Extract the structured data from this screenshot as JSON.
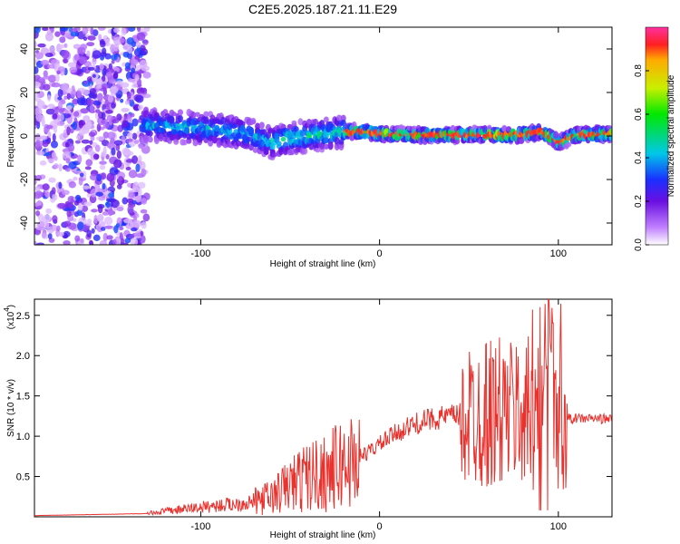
{
  "title": "C2E5.2025.187.21.11.E29",
  "chart_data": [
    {
      "type": "heatmap",
      "xlabel": "Height of straight line (km)",
      "ylabel": "Frequency (Hz)",
      "xlim": [
        -193,
        130
      ],
      "ylim": [
        -50,
        50
      ],
      "xticks": [
        -100,
        0,
        100
      ],
      "yticks": [
        40,
        20,
        0,
        -20,
        -40
      ],
      "colorbar": {
        "label": "Normalized spectral amplitude",
        "range": [
          0,
          1
        ],
        "ticks": [
          "0.0",
          "0.2",
          "0.4",
          "0.6",
          "0.8"
        ]
      },
      "ridge_trace": {
        "x": [
          -130,
          -110,
          -90,
          -70,
          -60,
          -50,
          -40,
          -30,
          -20,
          -10,
          0,
          20,
          40,
          60,
          80,
          90,
          95,
          100,
          110,
          130
        ],
        "frequency": [
          5,
          4,
          3,
          0,
          -3,
          -1,
          0,
          1,
          2,
          2,
          1,
          0.5,
          0.5,
          0.5,
          0.5,
          2,
          0,
          -3,
          0.5,
          1
        ]
      }
    },
    {
      "type": "line",
      "xlabel": "Height of straight line (km)",
      "ylabel": "SNR (10 * v/v)",
      "y_multiplier_label": "(x10",
      "y_multiplier_exp": "4",
      "y_multiplier_close": ")",
      "xlim": [
        -193,
        130
      ],
      "ylim": [
        0,
        27000
      ],
      "xticks": [
        -100,
        0,
        100
      ],
      "yticks": [
        "0.5",
        "1.0",
        "1.5",
        "2.0",
        "2.5"
      ],
      "ytick_values": [
        5000,
        10000,
        15000,
        20000,
        25000
      ],
      "series_color": "#e8322e",
      "x": [
        -193,
        -130,
        -120,
        -100,
        -80,
        -70,
        -60,
        -50,
        -40,
        -30,
        -20,
        -10,
        0,
        10,
        20,
        30,
        40,
        50,
        60,
        70,
        80,
        90,
        95,
        100,
        105,
        110,
        120,
        130
      ],
      "y": [
        150,
        400,
        700,
        1200,
        1600,
        1900,
        2500,
        4000,
        5000,
        5500,
        6500,
        7500,
        9000,
        10500,
        11500,
        12200,
        12500,
        12700,
        13000,
        12800,
        13000,
        12500,
        18000,
        13000,
        12200,
        12200,
        12200,
        12100
      ]
    }
  ]
}
